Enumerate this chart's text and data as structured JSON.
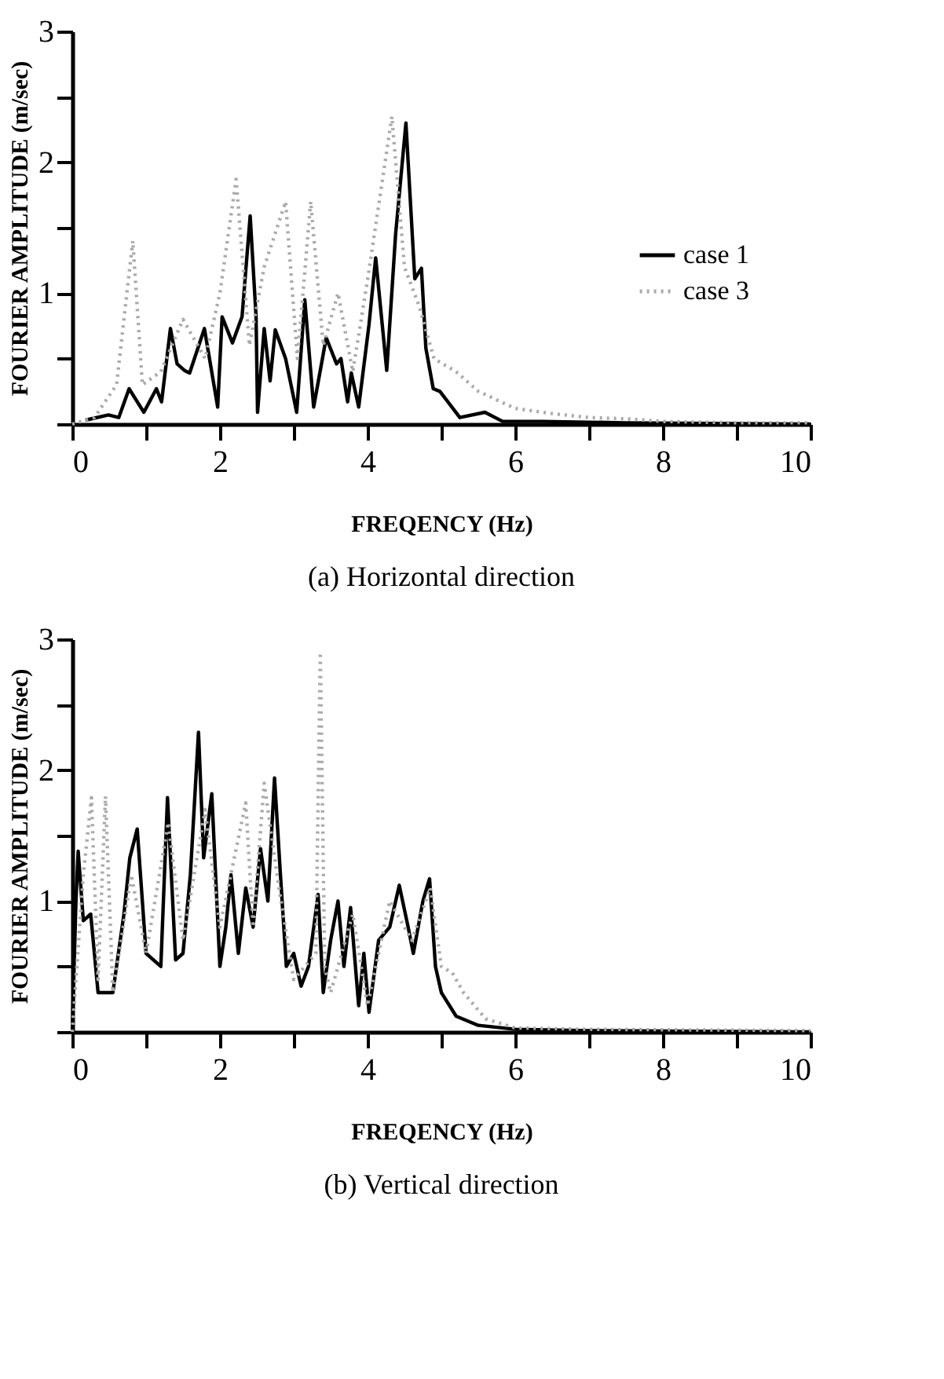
{
  "chart_data": [
    {
      "type": "line",
      "title": "(a) Horizontal direction",
      "xlabel": "FREQENCY (Hz)",
      "ylabel": "FOURIER AMPLITUDE (m/sec)",
      "xlim": [
        0,
        10
      ],
      "ylim": [
        0,
        3
      ],
      "xticks": [
        0,
        {
          "value": 1,
          "label": null
        },
        2,
        {
          "value": 3,
          "label": null
        },
        4,
        {
          "value": 5,
          "label": null
        },
        6,
        {
          "value": 7,
          "label": null
        },
        8,
        {
          "value": 9,
          "label": null
        },
        10
      ],
      "yticks": [
        {
          "value": 0,
          "label": null
        },
        {
          "value": 0.5,
          "label": null
        },
        1,
        {
          "value": 1.5,
          "label": null
        },
        2,
        {
          "value": 2.5,
          "label": null
        },
        3
      ],
      "grid": false,
      "legend": "right",
      "marker": "none",
      "series": [
        {
          "name": "case 1",
          "color": "#000000",
          "line_style": "solid",
          "x": [
            0.18,
            0.49,
            0.63,
            0.77,
            0.97,
            1.14,
            1.21,
            1.33,
            1.42,
            1.52,
            1.59,
            1.79,
            1.97,
            2.03,
            2.17,
            2.3,
            2.41,
            2.49,
            2.51,
            2.6,
            2.68,
            2.75,
            2.89,
            3.04,
            3.15,
            3.27,
            3.44,
            3.58,
            3.64,
            3.73,
            3.78,
            3.88,
            4.02,
            4.11,
            4.26,
            4.38,
            4.52,
            4.64,
            4.73,
            4.79,
            4.89,
            4.98,
            5.25,
            5.59,
            5.83,
            6.38,
            7.47,
            10
          ],
          "values": [
            0.03,
            0.07,
            0.05,
            0.27,
            0.09,
            0.27,
            0.17,
            0.73,
            0.46,
            0.41,
            0.39,
            0.73,
            0.13,
            0.82,
            0.62,
            0.82,
            1.59,
            0.82,
            0.09,
            0.73,
            0.33,
            0.72,
            0.5,
            0.09,
            0.95,
            0.13,
            0.66,
            0.46,
            0.5,
            0.17,
            0.39,
            0.13,
            0.76,
            1.27,
            0.41,
            1.45,
            2.3,
            1.11,
            1.19,
            0.58,
            0.27,
            0.25,
            0.05,
            0.09,
            0.02,
            0.02,
            0.01,
            0
          ]
        },
        {
          "name": "case 3",
          "color": "#aaaaaa",
          "line_style": "dotted",
          "x": [
            0,
            0.3,
            0.6,
            0.82,
            0.95,
            1.2,
            1.5,
            1.8,
            2.0,
            2.22,
            2.4,
            2.6,
            2.89,
            3.05,
            3.23,
            3.4,
            3.6,
            3.8,
            4.0,
            4.33,
            4.5,
            4.7,
            4.9,
            5.2,
            5.5,
            6.0,
            6.5,
            7.0,
            7.5,
            8,
            9,
            10
          ],
          "values": [
            0,
            0.05,
            0.3,
            1.4,
            0.3,
            0.4,
            0.8,
            0.5,
            1.0,
            1.87,
            0.6,
            1.2,
            1.7,
            0.5,
            1.7,
            0.6,
            1.0,
            0.4,
            1.1,
            2.35,
            1.2,
            0.9,
            0.5,
            0.4,
            0.25,
            0.12,
            0.08,
            0.05,
            0.04,
            0.02,
            0.01,
            0.01
          ]
        }
      ]
    },
    {
      "type": "line",
      "title": "(b) Vertical direction",
      "xlabel": "FREQENCY (Hz)",
      "ylabel": "FOURIER AMPLITUDE (m/sec)",
      "xlim": [
        0,
        10
      ],
      "ylim": [
        0,
        3
      ],
      "xticks": [
        0,
        {
          "value": 1,
          "label": null
        },
        2,
        {
          "value": 3,
          "label": null
        },
        4,
        {
          "value": 5,
          "label": null
        },
        6,
        {
          "value": 7,
          "label": null
        },
        8,
        {
          "value": 9,
          "label": null
        },
        10
      ],
      "yticks": [
        {
          "value": 0,
          "label": null
        },
        {
          "value": 0.5,
          "label": null
        },
        1,
        {
          "value": 1.5,
          "label": null
        },
        2,
        {
          "value": 2.5,
          "label": null
        },
        3
      ],
      "grid": false,
      "legend": "right",
      "marker": "none",
      "series": [
        {
          "name": "case 1",
          "color": "#000000",
          "line_style": "solid",
          "x": [
            0,
            0.05,
            0.08,
            0.15,
            0.25,
            0.35,
            0.55,
            0.7,
            0.78,
            0.88,
            1.0,
            1.1,
            1.2,
            1.29,
            1.4,
            1.5,
            1.6,
            1.71,
            1.78,
            1.89,
            2.0,
            2.08,
            2.15,
            2.25,
            2.35,
            2.45,
            2.55,
            2.65,
            2.74,
            2.82,
            2.9,
            3.0,
            3.1,
            3.2,
            3.33,
            3.4,
            3.5,
            3.6,
            3.68,
            3.77,
            3.88,
            3.95,
            4.02,
            4.15,
            4.3,
            4.43,
            4.55,
            4.62,
            4.75,
            4.84,
            4.92,
            5.0,
            5.2,
            5.5,
            6.0,
            7,
            10
          ],
          "values": [
            0,
            1.0,
            1.38,
            0.85,
            0.9,
            0.3,
            0.3,
            0.9,
            1.33,
            1.55,
            0.6,
            0.55,
            0.5,
            1.79,
            0.55,
            0.6,
            1.2,
            2.29,
            1.33,
            1.82,
            0.5,
            0.8,
            1.2,
            0.6,
            1.1,
            0.8,
            1.4,
            1.0,
            1.94,
            1.2,
            0.5,
            0.6,
            0.35,
            0.5,
            1.05,
            0.3,
            0.7,
            1.0,
            0.5,
            0.95,
            0.2,
            0.6,
            0.15,
            0.7,
            0.8,
            1.12,
            0.8,
            0.6,
            1.0,
            1.17,
            0.5,
            0.3,
            0.12,
            0.05,
            0.02,
            0.01,
            0
          ]
        },
        {
          "name": "case 3",
          "color": "#aaaaaa",
          "line_style": "dotted",
          "x": [
            0,
            0.15,
            0.26,
            0.35,
            0.45,
            0.55,
            0.8,
            1.0,
            1.3,
            1.5,
            1.8,
            2.0,
            2.35,
            2.45,
            2.6,
            2.8,
            3.0,
            3.3,
            3.36,
            3.42,
            3.5,
            3.8,
            4.0,
            4.3,
            4.6,
            4.85,
            5.0,
            5.15,
            5.3,
            5.6,
            6.0,
            7,
            10
          ],
          "values": [
            0,
            1.2,
            1.79,
            0.4,
            1.8,
            0.3,
            1.2,
            0.6,
            1.6,
            0.7,
            1.7,
            0.8,
            1.75,
            0.8,
            1.9,
            1.1,
            0.4,
            0.6,
            2.9,
            0.5,
            0.3,
            0.9,
            0.2,
            1.0,
            0.7,
            1.1,
            0.5,
            0.45,
            0.3,
            0.1,
            0.03,
            0.02,
            0.01
          ]
        }
      ]
    }
  ]
}
